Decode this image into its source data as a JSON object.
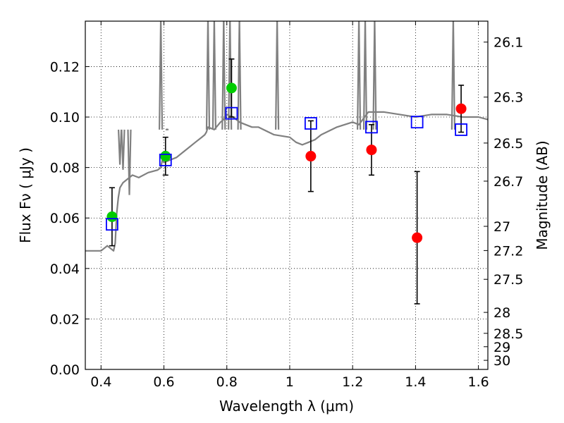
{
  "chart_data": {
    "type": "scatter",
    "xlabel": "Wavelength  λ (μm)",
    "ylabel": "Flux  Fν  ( μJy )",
    "ylabel_right": "Magnitude (AB)",
    "xlim": [
      0.35,
      1.63
    ],
    "ylim": [
      0.0,
      0.138
    ],
    "grid": true,
    "x_ticks": [
      0.4,
      0.6,
      0.8,
      1.0,
      1.2,
      1.4,
      1.6
    ],
    "x_tick_labels": [
      "0.4",
      "0.6",
      "0.8",
      "1",
      "1.2",
      "1.4",
      "1.6"
    ],
    "y_ticks": [
      0.0,
      0.02,
      0.04,
      0.06,
      0.08,
      0.1,
      0.12
    ],
    "y_tick_labels": [
      "0.00",
      "0.02",
      "0.04",
      "0.06",
      "0.08",
      "0.10",
      "0.12"
    ],
    "right_ticks": [
      {
        "label": "26.1",
        "flux": 0.1297
      },
      {
        "label": "26.3",
        "flux": 0.1079
      },
      {
        "label": "26.5",
        "flux": 0.0897
      },
      {
        "label": "26.7",
        "flux": 0.0746
      },
      {
        "label": "27",
        "flux": 0.0567
      },
      {
        "label": "27.2",
        "flux": 0.0471
      },
      {
        "label": "27.5",
        "flux": 0.0357
      },
      {
        "label": "28",
        "flux": 0.0226
      },
      {
        "label": "28.5",
        "flux": 0.0143
      },
      {
        "label": "29",
        "flux": 0.009
      },
      {
        "label": "30",
        "flux": 0.0036
      }
    ],
    "series": [
      {
        "kind": "line",
        "color": "#808080",
        "x": [
          0.35,
          0.4,
          0.42,
          0.44,
          0.445,
          0.45,
          0.455,
          0.46,
          0.47,
          0.48,
          0.49,
          0.5,
          0.52,
          0.55,
          0.58,
          0.59,
          0.595,
          0.6,
          0.62,
          0.64,
          0.66,
          0.68,
          0.7,
          0.72,
          0.73,
          0.735,
          0.74,
          0.76,
          0.78,
          0.79,
          0.795,
          0.8,
          0.82,
          0.84,
          0.86,
          0.88,
          0.9,
          0.95,
          1.0,
          1.02,
          1.04,
          1.06,
          1.08,
          1.1,
          1.15,
          1.2,
          1.22,
          1.25,
          1.3,
          1.35,
          1.4,
          1.45,
          1.5,
          1.55,
          1.6,
          1.63
        ],
        "y": [
          0.047,
          0.047,
          0.049,
          0.047,
          0.05,
          0.062,
          0.068,
          0.072,
          0.074,
          0.075,
          0.076,
          0.077,
          0.076,
          0.078,
          0.079,
          0.08,
          0.083,
          0.082,
          0.083,
          0.084,
          0.086,
          0.088,
          0.09,
          0.092,
          0.093,
          0.094,
          0.096,
          0.095,
          0.098,
          0.099,
          0.1,
          0.101,
          0.1,
          0.098,
          0.097,
          0.096,
          0.096,
          0.093,
          0.092,
          0.09,
          0.089,
          0.09,
          0.091,
          0.093,
          0.096,
          0.098,
          0.097,
          0.102,
          0.102,
          0.101,
          0.1,
          0.101,
          0.101,
          0.1,
          0.1,
          0.099
        ]
      },
      {
        "kind": "line-spikes",
        "color": "#808080",
        "x": [
          0.46,
          0.47,
          0.49,
          0.59,
          0.61,
          0.74,
          0.76,
          0.79,
          0.81,
          0.84,
          0.96,
          1.22,
          1.24,
          1.27,
          1.52
        ],
        "y": [
          0.08,
          0.078,
          0.068,
          0.138,
          0.094,
          0.138,
          0.138,
          0.138,
          0.138,
          0.138,
          0.138,
          0.138,
          0.138,
          0.138,
          0.138
        ]
      },
      {
        "kind": "errorbar-points",
        "color": "#00cc00",
        "x": [
          0.435,
          0.605,
          0.815
        ],
        "y": [
          0.0605,
          0.0845,
          0.1115
        ],
        "yerr": [
          0.0115,
          0.0075,
          0.0115
        ]
      },
      {
        "kind": "errorbar-points",
        "color": "#ff0000",
        "x": [
          1.067,
          1.26,
          1.405,
          1.545
        ],
        "y": [
          0.0845,
          0.087,
          0.0522,
          0.1033
        ],
        "yerr": [
          0.014,
          0.01,
          0.0262,
          0.0093
        ]
      },
      {
        "kind": "open-squares",
        "color": "#0000ff",
        "x": [
          0.435,
          0.605,
          0.815,
          1.067,
          1.26,
          1.405,
          1.545
        ],
        "y": [
          0.0575,
          0.083,
          0.1015,
          0.0975,
          0.096,
          0.098,
          0.095
        ]
      }
    ]
  }
}
